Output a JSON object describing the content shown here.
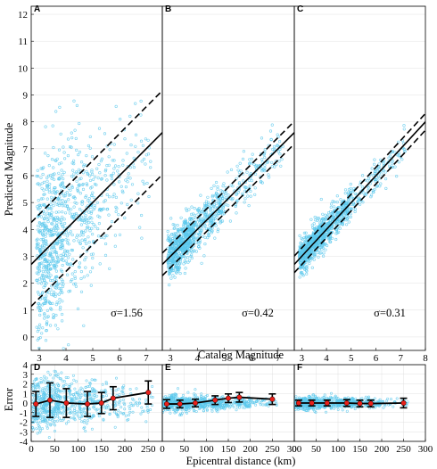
{
  "figure": {
    "top_ylabel": "Predicted Magnitude",
    "top_xlabel": "Catalog Magnitude",
    "bottom_ylabel": "Error",
    "bottom_xlabel": "Epicentral distance (km)",
    "colors": {
      "scatter": "#5bc8ec",
      "fit_line": "#000000",
      "error_marker": "#e8201a",
      "grid": "#d9d9d9"
    }
  },
  "chart_data": [
    {
      "type": "scatter",
      "panel": "A",
      "sigma_label": "σ=1.56",
      "sigma": 1.56,
      "xlim": [
        2.7,
        7.6
      ],
      "ylim": [
        -0.5,
        12.3
      ],
      "xticks": [
        "3",
        "4",
        "5",
        "6",
        "7"
      ],
      "yticks": [
        "0",
        "1",
        "2",
        "3",
        "4",
        "5",
        "6",
        "7",
        "8",
        "9",
        "10",
        "11",
        "12"
      ],
      "fit_line": {
        "slope": 1,
        "intercept": 0
      },
      "band_offset": 1.56,
      "scatter_description": "dense cloud of predicted vs catalog magnitude, catalog 2.9–7.2, predicted 0–11"
    },
    {
      "type": "scatter",
      "panel": "B",
      "sigma_label": "σ=0.42",
      "sigma": 0.42,
      "xlim": [
        2.7,
        7.6
      ],
      "ylim": [
        -0.5,
        12.3
      ],
      "xticks": [
        "3",
        "4",
        "5",
        "6",
        "7"
      ],
      "fit_line": {
        "slope": 1,
        "intercept": 0
      },
      "band_offset": 0.42
    },
    {
      "type": "scatter",
      "panel": "C",
      "sigma_label": "σ=0.31",
      "sigma": 0.31,
      "xlim": [
        2.7,
        8.0
      ],
      "ylim": [
        -0.5,
        12.3
      ],
      "xticks": [
        "3",
        "4",
        "5",
        "6",
        "7",
        "8"
      ],
      "fit_line": {
        "slope": 1,
        "intercept": 0
      },
      "band_offset": 0.31
    },
    {
      "type": "scatter",
      "panel": "D",
      "xlim": [
        0,
        280
      ],
      "ylim": [
        -4,
        4
      ],
      "xticks": [
        "0",
        "50",
        "100",
        "150",
        "200",
        "250"
      ],
      "yticks": [
        "-4",
        "-3",
        "-2",
        "-1",
        "0",
        "1",
        "2",
        "3",
        "4"
      ],
      "binned_errors": {
        "x": [
          10,
          40,
          75,
          120,
          150,
          175,
          250
        ],
        "y": [
          -0.1,
          0.3,
          0.0,
          -0.1,
          0.0,
          0.5,
          1.1
        ],
        "err": [
          1.3,
          1.8,
          1.5,
          1.3,
          1.1,
          1.2,
          1.2
        ]
      }
    },
    {
      "type": "scatter",
      "panel": "E",
      "xlim": [
        0,
        300
      ],
      "ylim": [
        -4,
        4
      ],
      "xticks": [
        "0",
        "50",
        "100",
        "150",
        "200",
        "250",
        "300"
      ],
      "binned_errors": {
        "x": [
          10,
          40,
          75,
          120,
          150,
          175,
          250
        ],
        "y": [
          -0.1,
          -0.1,
          0.0,
          0.3,
          0.5,
          0.6,
          0.4
        ],
        "err": [
          0.45,
          0.4,
          0.4,
          0.45,
          0.45,
          0.5,
          0.55
        ]
      }
    },
    {
      "type": "scatter",
      "panel": "F",
      "xlim": [
        0,
        300
      ],
      "ylim": [
        -4,
        4
      ],
      "xticks": [
        "0",
        "50",
        "100",
        "150",
        "200",
        "250",
        "300"
      ],
      "binned_errors": {
        "x": [
          10,
          40,
          75,
          120,
          150,
          175,
          250
        ],
        "y": [
          0.0,
          0.0,
          0.0,
          0.0,
          -0.05,
          -0.05,
          0.0
        ],
        "err": [
          0.3,
          0.3,
          0.3,
          0.35,
          0.35,
          0.35,
          0.5
        ]
      }
    }
  ]
}
